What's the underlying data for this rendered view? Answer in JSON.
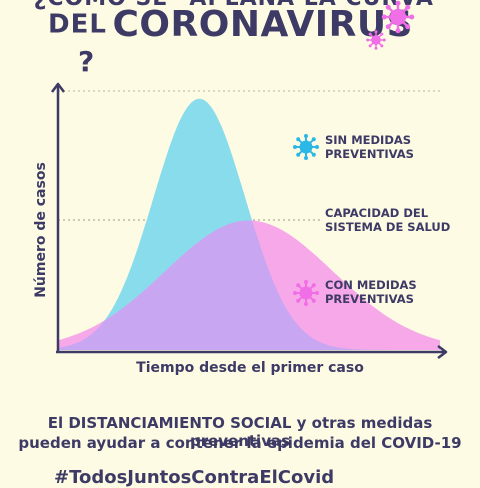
{
  "title": {
    "line1": "¿CÓMO SE \"APLANA LA CURVA\"",
    "line2_prefix": "DEL",
    "line2_main": "CORONAVIRUS",
    "line2_suffix": "?"
  },
  "chart_data": {
    "type": "area",
    "xlabel": "Tiempo desde el primer caso",
    "ylabel": "Número de casos",
    "grid": false,
    "series": [
      {
        "name": "SIN MEDIDAS PREVENTIVAS",
        "color": "#88dceb",
        "peak_x": 0.37,
        "peak_y": 0.97,
        "width": 0.12
      },
      {
        "name": "CON MEDIDAS PREVENTIVAS",
        "color": "#f6a8e8",
        "peak_x": 0.5,
        "peak_y": 0.5,
        "width": 0.22
      }
    ],
    "capacity_line": {
      "label": "CAPACIDAD DEL SISTEMA DE SALUD",
      "y": 0.5
    },
    "overlap_color": "#c8a6f2"
  },
  "legend": {
    "sin_line1": "SIN MEDIDAS",
    "sin_line2": "PREVENTIVAS",
    "capacity_line1": "CAPACIDAD DEL",
    "capacity_line2": "SISTEMA DE SALUD",
    "con_line1": "CON MEDIDAS",
    "con_line2": "PREVENTIVAS"
  },
  "note": {
    "line1_pre": "El",
    "line1_bold": "DISTANCIAMIENTO SOCIAL",
    "line1_post": "y otras medidas preventivas",
    "line2": "pueden ayudar a contener la epidemia del COVID-19"
  },
  "hashtag": "#TodosJuntosContraElCovid",
  "colors": {
    "text": "#3d3a66",
    "virus_blue": "#2bb8e6",
    "virus_pink": "#f06ee6",
    "background": "#fdfbe3"
  }
}
